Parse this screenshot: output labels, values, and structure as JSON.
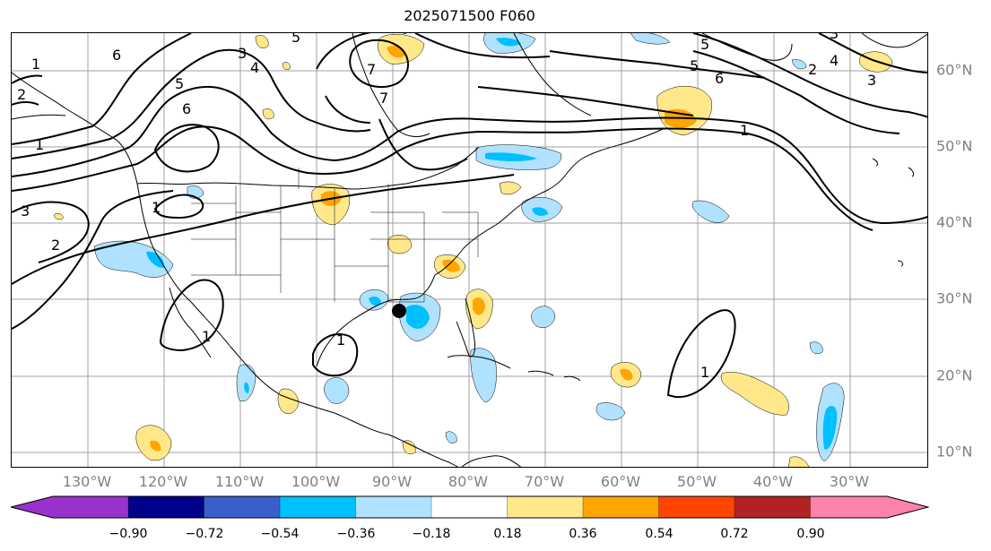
{
  "title": "2025071500 F060",
  "lon_labels": [
    "130°W",
    "120°W",
    "110°W",
    "100°W",
    "90°W",
    "80°W",
    "70°W",
    "60°W",
    "50°W",
    "40°W",
    "30°W"
  ],
  "lat_labels": [
    "60°N",
    "50°N",
    "40°N",
    "30°N",
    "20°N",
    "10°N"
  ],
  "contour_labels": [
    "6",
    "5",
    "6",
    "4",
    "5",
    "3",
    "7",
    "7",
    "1",
    "1",
    "3",
    "2",
    "1",
    "1",
    "1",
    "1",
    "5",
    "6",
    "5",
    "4",
    "3",
    "2",
    "1",
    "3",
    "2"
  ],
  "colorbar": {
    "ticks": [
      "−0.90",
      "−0.72",
      "−0.54",
      "−0.36",
      "−0.18",
      "0.18",
      "0.36",
      "0.54",
      "0.72",
      "0.90"
    ],
    "colors": [
      "#9932cc",
      "#00008b",
      "#3a5fcd",
      "#00bfff",
      "#b0e2ff",
      "#ffffff",
      "#ffe88a",
      "#ffa500",
      "#ff4500",
      "#b22222",
      "#ff82ab"
    ]
  },
  "colors": {
    "grid": "#a0a0a0",
    "coast": "#000000",
    "contour": "#000000",
    "marker": "#000000"
  }
}
